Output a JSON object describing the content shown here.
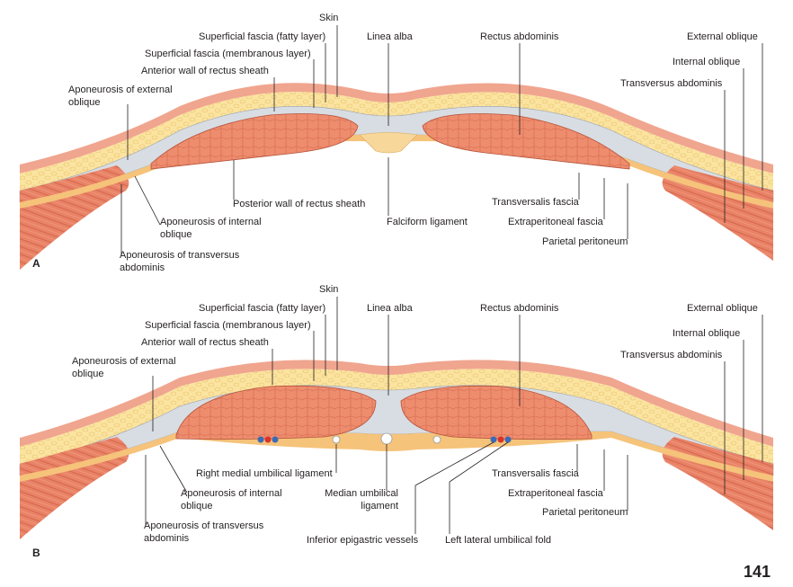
{
  "page_number": "141",
  "colors": {
    "skin": "#f0a58f",
    "fat": "#fbe3a0",
    "fascia": "#d8dde3",
    "muscle": "#ee8c6e",
    "peritoneum": "#f5c37a",
    "leader": "#231f20"
  },
  "panel_a": {
    "letter": "A",
    "labels": {
      "skin": "Skin",
      "superficial_fascia_fatty": "Superficial fascia (fatty layer)",
      "superficial_fascia_membranous": "Superficial fascia (membranous layer)",
      "anterior_wall_rectus_sheath": "Anterior wall of rectus sheath",
      "aponeurosis_external_oblique": "Aponeurosis of external oblique",
      "linea_alba": "Linea alba",
      "rectus_abdominis": "Rectus abdominis",
      "external_oblique": "External oblique",
      "internal_oblique": "Internal oblique",
      "transversus_abdominis": "Transversus abdominis",
      "posterior_wall_rectus_sheath": "Posterior wall of rectus sheath",
      "aponeurosis_internal_oblique": "Aponeurosis of internal oblique",
      "aponeurosis_transversus": "Aponeurosis of transversus abdominis",
      "falciform_ligament": "Falciform ligament",
      "transversalis_fascia": "Transversalis fascia",
      "extraperitoneal_fascia": "Extraperitoneal fascia",
      "parietal_peritoneum": "Parietal peritoneum"
    }
  },
  "panel_b": {
    "letter": "B",
    "labels": {
      "skin": "Skin",
      "superficial_fascia_fatty": "Superficial fascia (fatty layer)",
      "superficial_fascia_membranous": "Superficial fascia (membranous layer)",
      "anterior_wall_rectus_sheath": "Anterior wall of rectus sheath",
      "aponeurosis_external_oblique": "Aponeurosis of external oblique",
      "linea_alba": "Linea alba",
      "rectus_abdominis": "Rectus abdominis",
      "external_oblique": "External oblique",
      "internal_oblique": "Internal oblique",
      "transversus_abdominis": "Transversus abdominis",
      "right_medial_umbilical_ligament": "Right medial umbilical ligament",
      "aponeurosis_internal_oblique": "Aponeurosis of internal oblique",
      "median_umbilical_ligament": "Median umbilical ligament",
      "aponeurosis_transversus": "Aponeurosis of transversus abdominis",
      "inferior_epigastric_vessels": "Inferior epigastric vessels",
      "left_lateral_umbilical_fold": "Left lateral umbilical fold",
      "transversalis_fascia": "Transversalis fascia",
      "extraperitoneal_fascia": "Extraperitoneal fascia",
      "parietal_peritoneum": "Parietal peritoneum"
    }
  }
}
